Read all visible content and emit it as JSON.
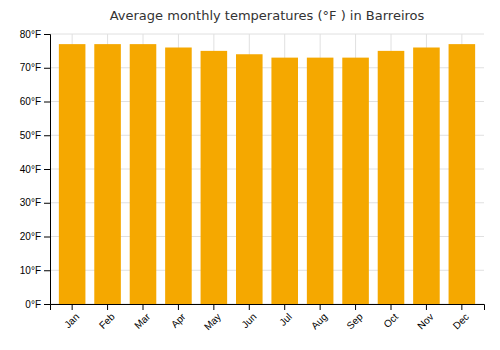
{
  "chart_data": {
    "type": "bar",
    "title": "Average monthly temperatures (°F ) in Barreiros",
    "categories": [
      "Jan",
      "Feb",
      "Mar",
      "Apr",
      "May",
      "Jun",
      "Jul",
      "Aug",
      "Sep",
      "Oct",
      "Nov",
      "Dec"
    ],
    "values": [
      77,
      77,
      77,
      76,
      75,
      74,
      73,
      73,
      73,
      75,
      76,
      77
    ],
    "color": "#F5A800",
    "ylim": [
      0,
      80
    ],
    "yticks": [
      {
        "value": 0,
        "label": "0°F"
      },
      {
        "value": 10,
        "label": "10°F"
      },
      {
        "value": 20,
        "label": "20°F"
      },
      {
        "value": 30,
        "label": "30°F"
      },
      {
        "value": 40,
        "label": "40°F"
      },
      {
        "value": 50,
        "label": "50°F"
      },
      {
        "value": 60,
        "label": "60°F"
      },
      {
        "value": 70,
        "label": "70°F"
      },
      {
        "value": 80,
        "label": "80°F"
      }
    ],
    "grid": true
  }
}
